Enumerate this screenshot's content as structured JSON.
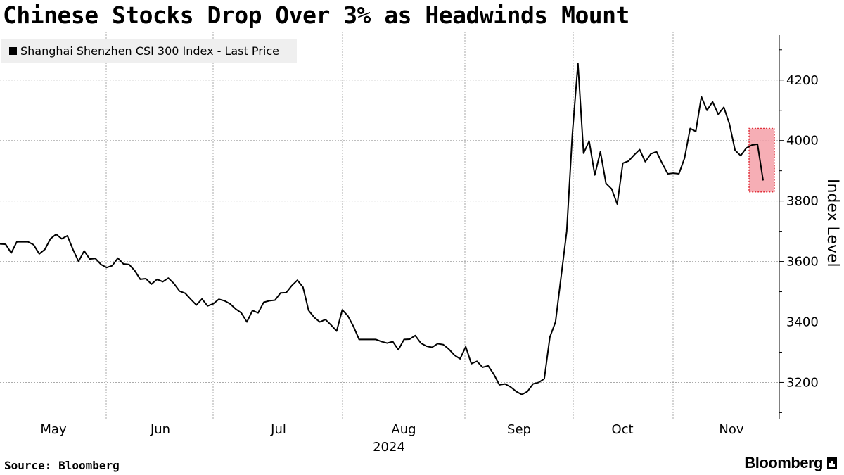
{
  "header": {
    "title": "Chinese Stocks Drop Over 3% as Headwinds Mount"
  },
  "legend": {
    "label": "Shanghai Shenzhen CSI 300 Index - Last Price"
  },
  "footer": {
    "source": "Source: Bloomberg",
    "brand": "Bloomberg"
  },
  "colors": {
    "line": "#000000",
    "highlight_fill": "#f4a0a8",
    "highlight_border": "#e0303a",
    "grid": "#aaaaaa"
  },
  "chart_data": {
    "type": "line",
    "title": "Chinese Stocks Drop Over 3% as Headwinds Mount",
    "series": [
      {
        "name": "Shanghai Shenzhen CSI 300 Index - Last Price",
        "values": [
          3658,
          3657,
          3628,
          3665,
          3665,
          3665,
          3655,
          3625,
          3640,
          3675,
          3690,
          3675,
          3685,
          3640,
          3600,
          3635,
          3608,
          3610,
          3590,
          3580,
          3586,
          3611,
          3592,
          3590,
          3570,
          3541,
          3543,
          3525,
          3541,
          3533,
          3545,
          3527,
          3502,
          3495,
          3475,
          3456,
          3476,
          3453,
          3460,
          3475,
          3470,
          3460,
          3443,
          3430,
          3400,
          3438,
          3430,
          3465,
          3470,
          3472,
          3496,
          3497,
          3520,
          3538,
          3515,
          3438,
          3415,
          3400,
          3408,
          3390,
          3370,
          3440,
          3420,
          3385,
          3342,
          3342,
          3342,
          3342,
          3335,
          3330,
          3335,
          3308,
          3342,
          3343,
          3355,
          3330,
          3320,
          3316,
          3328,
          3325,
          3310,
          3290,
          3278,
          3318,
          3262,
          3270,
          3250,
          3255,
          3227,
          3192,
          3195,
          3185,
          3170,
          3160,
          3170,
          3195,
          3200,
          3212,
          3350,
          3400,
          3550,
          3700,
          4020,
          4255,
          3958,
          3998,
          3886,
          3963,
          3858,
          3840,
          3790,
          3925,
          3932,
          3952,
          3970,
          3930,
          3956,
          3963,
          3925,
          3890,
          3892,
          3890,
          3942,
          4040,
          4030,
          4145,
          4100,
          4128,
          4087,
          4110,
          4055,
          3968,
          3950,
          3975,
          3985,
          3988,
          3868
        ]
      }
    ],
    "x_tick_labels": [
      "May",
      "Jun",
      "Jul",
      "Aug",
      "Sep",
      "Oct",
      "Nov"
    ],
    "x_year_label": "2024",
    "y_ticks": [
      3200,
      3400,
      3600,
      3800,
      4000,
      4200
    ],
    "ylim": [
      3080,
      4360
    ],
    "ylabel": "Index Level",
    "highlight": {
      "y_range": [
        3830,
        4040
      ],
      "description_series_points": "last two points"
    },
    "grid": true,
    "legend_position": "top-left"
  }
}
